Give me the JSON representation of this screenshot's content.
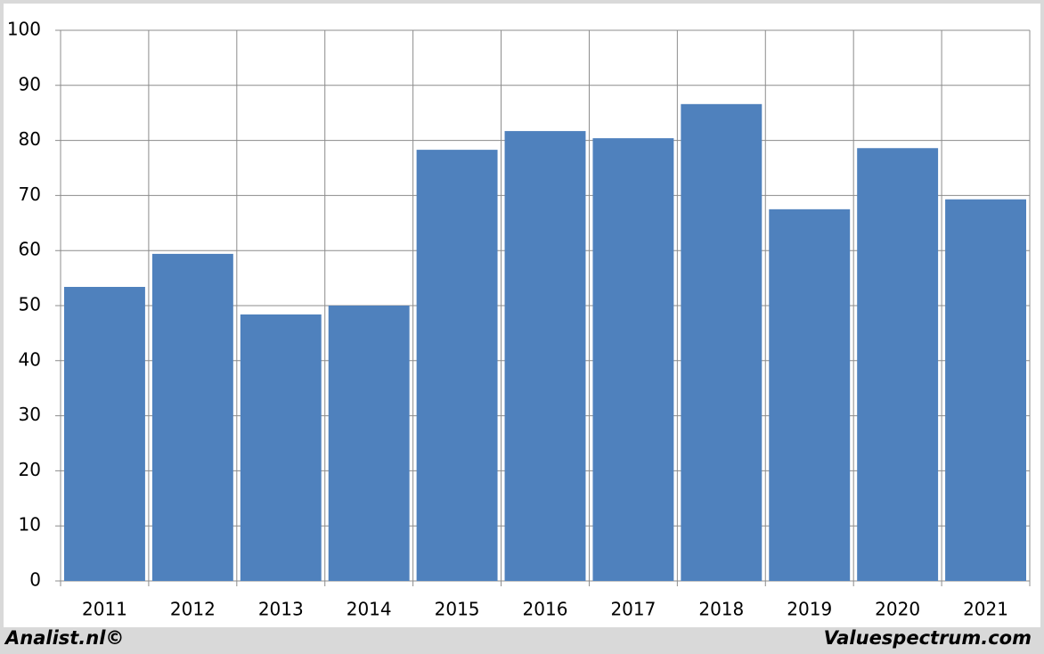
{
  "chart_data": {
    "type": "bar",
    "categories": [
      "2011",
      "2012",
      "2013",
      "2014",
      "2015",
      "2016",
      "2017",
      "2018",
      "2019",
      "2020",
      "2021"
    ],
    "values": [
      53.4,
      59.4,
      48.4,
      50,
      78.3,
      81.7,
      80.4,
      86.6,
      67.5,
      78.6,
      69.3
    ],
    "color": "#4f81bd",
    "ylim": [
      0,
      100
    ],
    "yticks": [
      0,
      10,
      20,
      30,
      40,
      50,
      60,
      70,
      80,
      90,
      100
    ],
    "grid": true,
    "footer_left": "Analist.nl©",
    "footer_right": "Valuespectrum.com"
  }
}
